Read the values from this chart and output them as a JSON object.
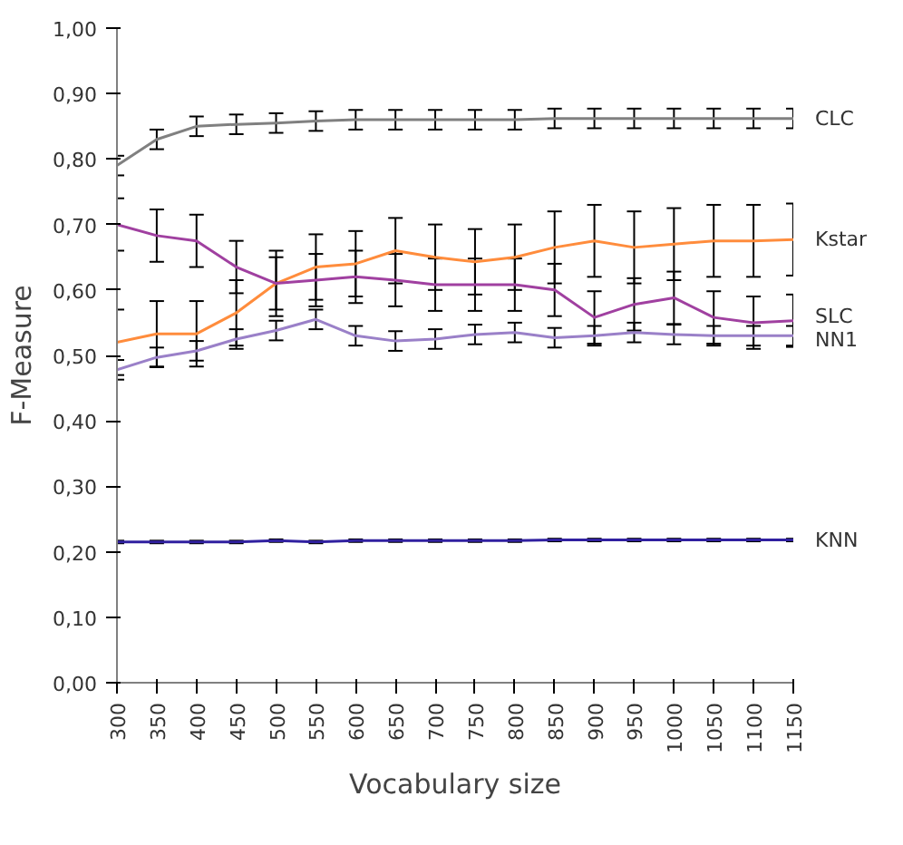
{
  "chart_data": {
    "type": "line",
    "xlabel": "Vocabulary size",
    "ylabel": "F-Measure",
    "x": [
      300,
      350,
      400,
      450,
      500,
      550,
      600,
      650,
      700,
      750,
      800,
      850,
      900,
      950,
      1000,
      1050,
      1100,
      1150
    ],
    "xlim": [
      300,
      1150
    ],
    "xticks": [
      300,
      350,
      400,
      450,
      500,
      550,
      600,
      650,
      700,
      750,
      800,
      850,
      900,
      950,
      1000,
      1050,
      1100,
      1150
    ],
    "ylim": [
      0,
      1
    ],
    "yticks": [
      {
        "value": 0,
        "label": "0,00"
      },
      {
        "value": 0.1,
        "label": "0,10"
      },
      {
        "value": 0.2,
        "label": "0,20"
      },
      {
        "value": 0.3,
        "label": "0,30"
      },
      {
        "value": 0.4,
        "label": "0,40"
      },
      {
        "value": 0.5,
        "label": "0,50"
      },
      {
        "value": 0.6,
        "label": "0,60"
      },
      {
        "value": 0.7,
        "label": "0,70"
      },
      {
        "value": 0.8,
        "label": "0,80"
      },
      {
        "value": 0.9,
        "label": "0,90"
      },
      {
        "value": 1.0,
        "label": "1,00"
      }
    ],
    "grid": false,
    "marker": "none",
    "line_style": "solid",
    "series": [
      {
        "name": "CLC",
        "color": "#808080",
        "values": [
          0.79,
          0.83,
          0.85,
          0.853,
          0.855,
          0.858,
          0.86,
          0.86,
          0.86,
          0.86,
          0.86,
          0.862,
          0.862,
          0.862,
          0.862,
          0.862,
          0.862,
          0.862
        ],
        "errors": [
          0.015,
          0.015,
          0.015,
          0.015,
          0.015,
          0.015,
          0.015,
          0.015,
          0.015,
          0.015,
          0.015,
          0.015,
          0.015,
          0.015,
          0.015,
          0.015,
          0.015,
          0.015
        ]
      },
      {
        "name": "Kstar",
        "color": "#ff8c3c",
        "values": [
          0.52,
          0.533,
          0.533,
          0.565,
          0.61,
          0.635,
          0.64,
          0.66,
          0.65,
          0.643,
          0.65,
          0.665,
          0.675,
          0.665,
          0.67,
          0.675,
          0.675,
          0.677
        ],
        "errors": [
          0.05,
          0.05,
          0.05,
          0.05,
          0.05,
          0.05,
          0.05,
          0.05,
          0.05,
          0.05,
          0.05,
          0.055,
          0.055,
          0.055,
          0.055,
          0.055,
          0.055,
          0.055
        ]
      },
      {
        "name": "SLC",
        "color": "#a040a0",
        "values": [
          0.7,
          0.683,
          0.675,
          0.635,
          0.61,
          0.615,
          0.62,
          0.615,
          0.608,
          0.608,
          0.608,
          0.6,
          0.558,
          0.578,
          0.588,
          0.558,
          0.55,
          0.553
        ],
        "errors": [
          0.04,
          0.04,
          0.04,
          0.04,
          0.04,
          0.04,
          0.04,
          0.04,
          0.04,
          0.04,
          0.04,
          0.04,
          0.04,
          0.04,
          0.04,
          0.04,
          0.04,
          0.04
        ]
      },
      {
        "name": "NN1",
        "color": "#9a80c8",
        "values": [
          0.478,
          0.497,
          0.507,
          0.525,
          0.538,
          0.555,
          0.53,
          0.522,
          0.525,
          0.532,
          0.535,
          0.527,
          0.53,
          0.535,
          0.532,
          0.53,
          0.53,
          0.53
        ],
        "errors": [
          0.015,
          0.015,
          0.015,
          0.015,
          0.015,
          0.015,
          0.015,
          0.015,
          0.015,
          0.015,
          0.015,
          0.015,
          0.015,
          0.015,
          0.015,
          0.015,
          0.015,
          0.015
        ]
      },
      {
        "name": "KNN",
        "color": "#3020a0",
        "values": [
          0.215,
          0.215,
          0.215,
          0.215,
          0.217,
          0.215,
          0.217,
          0.217,
          0.217,
          0.217,
          0.217,
          0.218,
          0.218,
          0.218,
          0.218,
          0.218,
          0.218,
          0.218
        ],
        "errors": [
          0.002,
          0.002,
          0.002,
          0.002,
          0.002,
          0.002,
          0.002,
          0.002,
          0.002,
          0.002,
          0.002,
          0.002,
          0.002,
          0.002,
          0.002,
          0.002,
          0.002,
          0.002
        ]
      }
    ]
  }
}
